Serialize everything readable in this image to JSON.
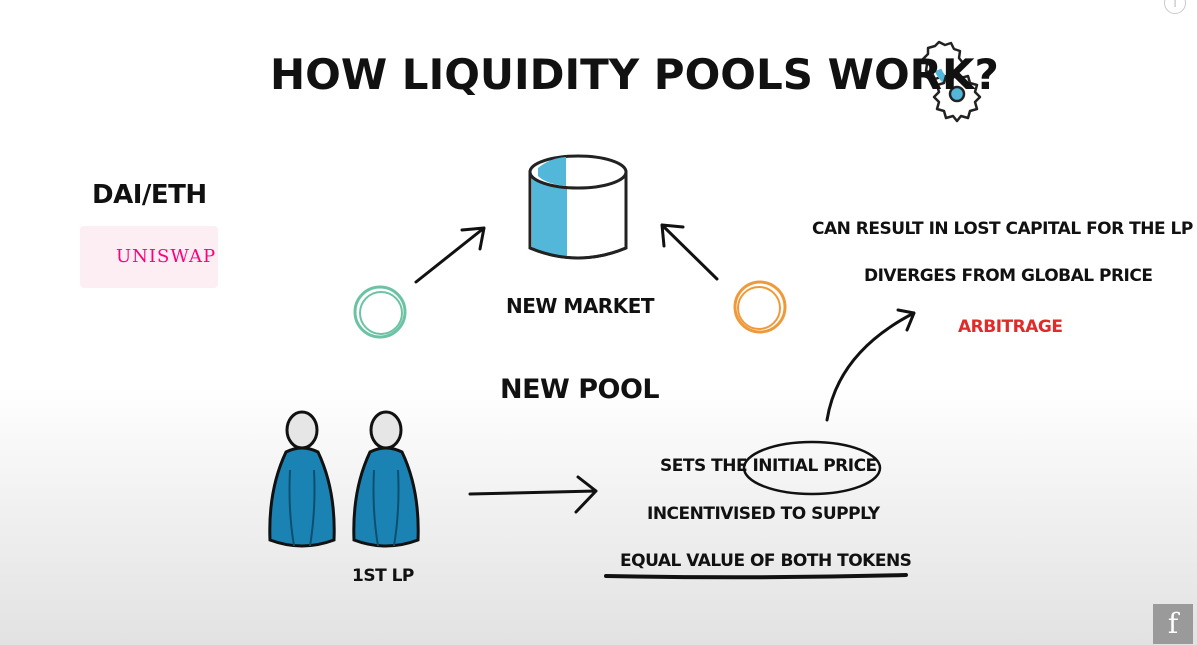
{
  "title": "HOW LIQUIDITY POOLS WORK?",
  "pair": "DAI/ETH",
  "exchange_logo": "UNISWAP",
  "market": {
    "label": "NEW MARKET"
  },
  "pool": {
    "label": "NEW POOL"
  },
  "provider": {
    "label": "1ST LP"
  },
  "steps": {
    "sets_prefix": "SETS THE ",
    "sets_highlight": "INITIAL PRICE",
    "incentivised": "INCENTIVISED TO SUPPLY",
    "equal_value": "EQUAL VALUE OF BOTH TOKENS"
  },
  "outcomes": {
    "lost_capital": "CAN RESULT IN LOST CAPITAL FOR THE LP",
    "diverges": "DIVERGES FROM GLOBAL PRICE",
    "arbitrage": "ARBITRAGE"
  },
  "colors": {
    "token_a": "#6cc3a4",
    "token_b": "#ef9a3a",
    "pool_fill": "#52b7d9",
    "person_fill": "#1a83b4",
    "arbitrage": "#e12a2a"
  },
  "icons": [
    "gear-icon",
    "info-icon",
    "channel-logo-icon",
    "uniswap-unicorn-icon"
  ]
}
